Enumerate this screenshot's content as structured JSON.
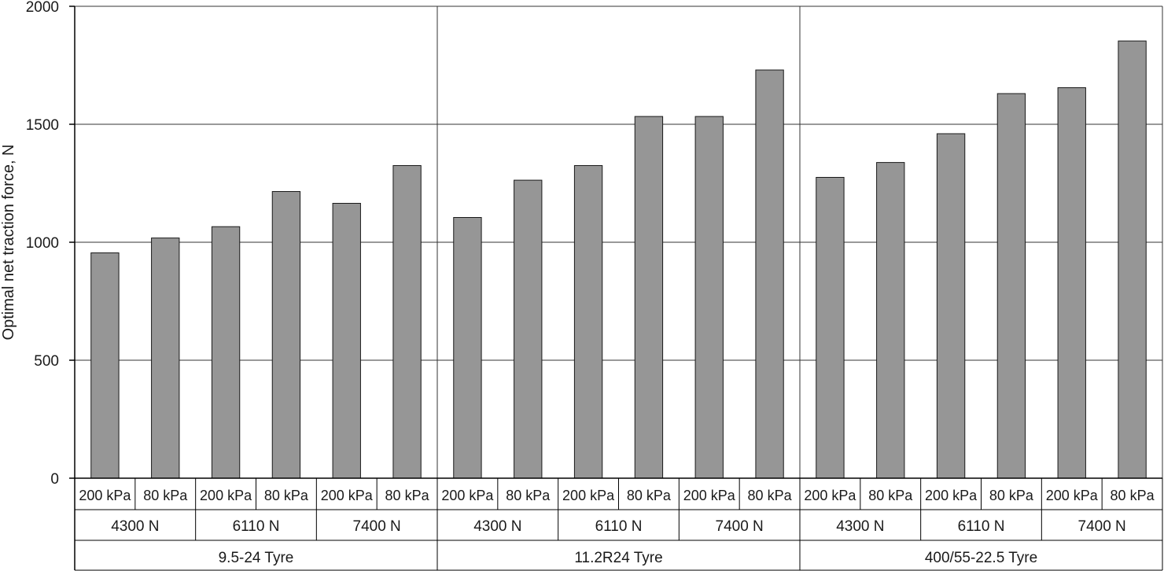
{
  "chart_data": {
    "type": "bar",
    "title": "",
    "xlabel": "",
    "ylabel": "Optimal net traction force, N",
    "ylim": [
      0,
      2000
    ],
    "yticks": [
      0,
      500,
      1000,
      1500,
      2000
    ],
    "grid": true,
    "legend": "none",
    "bar_color": "#969696",
    "bar_edge_color": "#1a1a1a",
    "grid_color": "#333333",
    "axis_color": "#000000",
    "tyres": [
      {
        "label": "9.5-24 Tyre",
        "loads": [
          {
            "label": "4300 N",
            "bars": [
              {
                "pressure": "200 kPa",
                "value": 955
              },
              {
                "pressure": "80 kPa",
                "value": 1018
              }
            ]
          },
          {
            "label": "6110 N",
            "bars": [
              {
                "pressure": "200 kPa",
                "value": 1066
              },
              {
                "pressure": "80 kPa",
                "value": 1215
              }
            ]
          },
          {
            "label": "7400 N",
            "bars": [
              {
                "pressure": "200 kPa",
                "value": 1165
              },
              {
                "pressure": "80 kPa",
                "value": 1325
              }
            ]
          }
        ]
      },
      {
        "label": "11.2R24 Tyre",
        "loads": [
          {
            "label": "4300 N",
            "bars": [
              {
                "pressure": "200 kPa",
                "value": 1105
              },
              {
                "pressure": "80 kPa",
                "value": 1263
              }
            ]
          },
          {
            "label": "6110 N",
            "bars": [
              {
                "pressure": "200 kPa",
                "value": 1325
              },
              {
                "pressure": "80 kPa",
                "value": 1533
              }
            ]
          },
          {
            "label": "7400 N",
            "bars": [
              {
                "pressure": "200 kPa",
                "value": 1533
              },
              {
                "pressure": "80 kPa",
                "value": 1730
              }
            ]
          }
        ]
      },
      {
        "label": "400/55-22.5 Tyre",
        "loads": [
          {
            "label": "4300 N",
            "bars": [
              {
                "pressure": "200 kPa",
                "value": 1275
              },
              {
                "pressure": "80 kPa",
                "value": 1338
              }
            ]
          },
          {
            "label": "6110 N",
            "bars": [
              {
                "pressure": "200 kPa",
                "value": 1460
              },
              {
                "pressure": "80 kPa",
                "value": 1630
              }
            ]
          },
          {
            "label": "7400 N",
            "bars": [
              {
                "pressure": "200 kPa",
                "value": 1655
              },
              {
                "pressure": "80 kPa",
                "value": 1853
              }
            ]
          }
        ]
      }
    ]
  }
}
